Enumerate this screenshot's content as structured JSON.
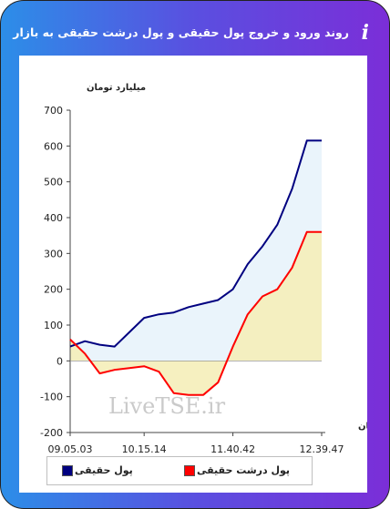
{
  "header": {
    "title": "روند ورود و خروج پول حقیقی و پول درشت حقیقی به بازار",
    "info_icon": "i"
  },
  "colors": {
    "series_retail": "#000080",
    "series_large": "#ff0000",
    "fill_retail": "#eaf4fb",
    "fill_large": "#f5eeb9"
  },
  "icons": [
    "info-icon",
    "s-logo-icon"
  ],
  "chart_data": {
    "type": "line",
    "ylabel": "میلیارد تومان",
    "xlabel": "زمان",
    "ylim": [
      -200,
      700
    ],
    "yticks": [
      -200,
      -100,
      0,
      100,
      200,
      300,
      400,
      500,
      600,
      700
    ],
    "xticks": [
      "09.05.03",
      "10.15.14",
      "11.40.42",
      "12.39.47"
    ],
    "watermark": "LiveTSE.ir",
    "grid": false,
    "legend_position": "bottom",
    "x": [
      "09.05.03",
      "09.15",
      "09.30",
      "09.45",
      "10.00",
      "10.15.14",
      "10.30",
      "10.45",
      "11.00",
      "11.15",
      "11.30",
      "11.40.42",
      "11.50",
      "12.00",
      "12.10",
      "12.20",
      "12.30",
      "12.39.47"
    ],
    "series": [
      {
        "name": "پول حقیقی",
        "color": "#000080",
        "values": [
          40,
          55,
          45,
          40,
          80,
          120,
          130,
          135,
          150,
          160,
          170,
          200,
          270,
          320,
          380,
          480,
          615,
          615
        ]
      },
      {
        "name": "پول درشت حقیقی",
        "color": "#ff0000",
        "values": [
          60,
          20,
          -35,
          -25,
          -20,
          -15,
          -30,
          -90,
          -95,
          -95,
          -60,
          40,
          130,
          180,
          200,
          260,
          360,
          360
        ]
      }
    ]
  }
}
